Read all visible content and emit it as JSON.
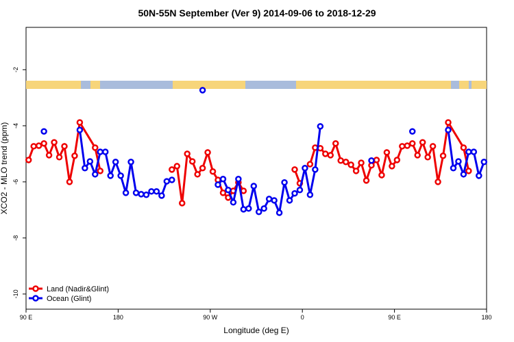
{
  "chart_data": {
    "type": "line",
    "title": "50N-55N September (Ver 9)   2014-09-06 to 2018-12-29",
    "x_label": "Longitude (deg E)",
    "y_label": "XCO2 - MLO trend (ppm)",
    "xlim": [
      90,
      540
    ],
    "xticks": [
      {
        "value": 90,
        "label": "90 E"
      },
      180,
      {
        "value": 270,
        "label": "90 W"
      },
      {
        "value": 360,
        "label": "0"
      },
      {
        "value": 450,
        "label": "90 E"
      },
      {
        "value": 540,
        "label": "180"
      }
    ],
    "ylim": [
      -10.54,
      -0.49
    ],
    "yticks": [
      -2,
      -4,
      -6,
      -8,
      -10
    ],
    "legend": "bottom-left",
    "series": [
      {
        "name": "Land (Nadir&Glint)",
        "color": "#ee0000",
        "x": [
          92.5,
          97.5,
          102.5,
          107.5,
          112.5,
          117.5,
          122.5,
          127.5,
          132.5,
          137.5,
          142.5,
          157.5,
          162.5,
          null,
          232.5,
          237.5,
          242.5,
          247.5,
          252.5,
          257.5,
          262.5,
          267.5,
          272.5,
          277.5,
          282.5,
          287.5,
          292.5,
          297.5,
          302.5,
          null,
          352.5,
          357.5,
          null,
          367.5,
          372.5,
          377.5,
          382.5,
          387.5,
          392.5,
          397.5,
          402.5,
          407.5,
          412.5,
          417.5,
          422.5,
          427.5,
          432.5,
          437.5,
          442.5,
          447.5,
          452.5,
          457.5,
          462.5,
          467.5,
          472.5,
          477.5,
          482.5,
          487.5,
          492.5,
          497.5,
          502.5,
          517.5,
          522.5
        ],
        "values": [
          -5.22,
          -4.73,
          -4.71,
          -4.63,
          -5.05,
          -4.59,
          -5.12,
          -4.73,
          -6.0,
          -5.07,
          -3.88,
          -4.78,
          -5.61,
          null,
          -5.56,
          -5.44,
          -6.76,
          -5.0,
          -5.27,
          -5.73,
          -5.51,
          -4.95,
          -5.63,
          -5.93,
          -6.39,
          -6.56,
          -6.32,
          -6.02,
          -6.32,
          null,
          -5.56,
          -6.05,
          null,
          -5.37,
          -4.78,
          -4.8,
          -5.0,
          -5.05,
          -4.63,
          -5.24,
          -5.29,
          -5.39,
          -5.61,
          -5.32,
          -5.95,
          -5.41,
          -5.22,
          -5.76,
          -4.95,
          -5.44,
          -5.22,
          -4.73,
          -4.71,
          -4.63,
          -5.05,
          -4.59,
          -5.12,
          -4.73,
          -6.0,
          -5.07,
          -3.88,
          -4.78,
          -5.61
        ]
      },
      {
        "name": "Ocean (Glint)",
        "color": "#0000ee",
        "x": [
          107.5,
          null,
          142.5,
          147.5,
          152.5,
          157.5,
          162.5,
          167.5,
          172.5,
          177.5,
          182.5,
          187.5,
          192.5,
          197.5,
          202.5,
          207.5,
          212.5,
          217.5,
          222.5,
          227.5,
          232.5,
          null,
          262.5,
          null,
          277.5,
          282.5,
          287.5,
          292.5,
          297.5,
          302.5,
          307.5,
          312.5,
          317.5,
          322.5,
          327.5,
          332.5,
          337.5,
          342.5,
          347.5,
          352.5,
          357.5,
          362.5,
          367.5,
          372.5,
          377.5,
          null,
          427.5,
          null,
          467.5,
          null,
          502.5,
          507.5,
          512.5,
          517.5,
          522.5,
          527.5,
          532.5,
          537.5
        ],
        "values": [
          -4.2,
          null,
          -4.15,
          -5.51,
          -5.27,
          -5.73,
          -4.93,
          -4.93,
          -5.78,
          -5.29,
          -5.78,
          -6.39,
          -5.29,
          -6.39,
          -6.44,
          -6.46,
          -6.34,
          -6.34,
          -6.49,
          -5.98,
          -5.93,
          null,
          -2.73,
          null,
          -6.1,
          -5.9,
          -6.29,
          -6.73,
          -5.9,
          -6.98,
          -6.95,
          -6.15,
          -7.07,
          -6.95,
          -6.61,
          -6.66,
          -7.1,
          -6.02,
          -6.66,
          -6.41,
          -6.29,
          -5.51,
          -6.46,
          -5.56,
          -4.02,
          null,
          -5.24,
          null,
          -4.2,
          null,
          -4.15,
          -5.51,
          -5.27,
          -5.73,
          -4.93,
          -4.93,
          -5.78,
          -5.29
        ]
      }
    ]
  }
}
